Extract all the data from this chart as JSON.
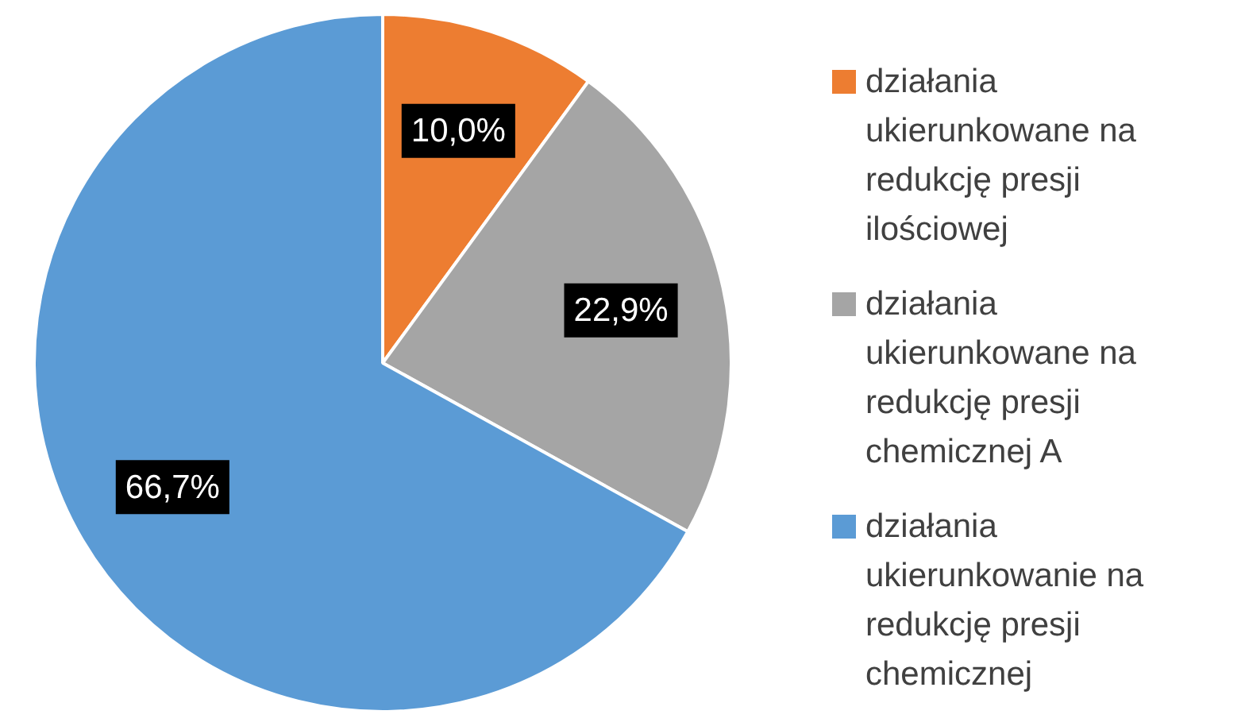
{
  "chart_data": {
    "type": "pie",
    "categories": [
      "działania ukierunkowane na redukcję presji ilościowej",
      "działania ukierunkowane na redukcję presji chemicznej A",
      "działania ukierunkowanie na redukcję presji chemicznej"
    ],
    "values": [
      10.0,
      22.9,
      66.7
    ],
    "colors": [
      "#ed7d31",
      "#a5a5a5",
      "#5b9bd5"
    ],
    "value_labels": [
      "10,0%",
      "22,9%",
      "66,7%"
    ],
    "legend": "right"
  }
}
